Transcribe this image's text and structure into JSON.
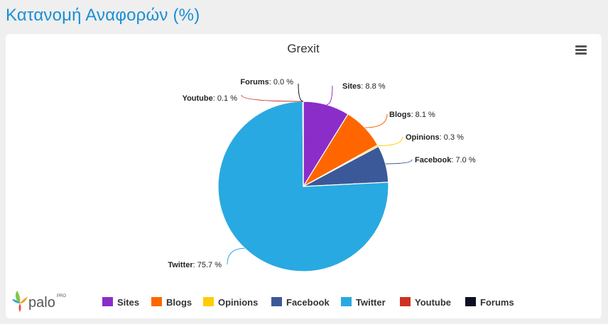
{
  "page": {
    "heading": "Κατανομή Αναφορών (%)"
  },
  "logo": {
    "text": "palo",
    "superscript": "PRO"
  },
  "icons": {
    "menu": "hamburger-menu-icon",
    "logo": "palo-leaf-logo-icon"
  },
  "chart_data": {
    "type": "pie",
    "title": "Grexit",
    "unit": "%",
    "legend_position": "bottom",
    "slices": [
      {
        "label": "Sites",
        "value": 8.8,
        "display": "8.8 %",
        "color": "#8b2dc9"
      },
      {
        "label": "Blogs",
        "value": 8.1,
        "display": "8.1 %",
        "color": "#ff6600"
      },
      {
        "label": "Opinions",
        "value": 0.3,
        "display": "0.3 %",
        "color": "#ffcc00"
      },
      {
        "label": "Facebook",
        "value": 7.0,
        "display": "7.0 %",
        "color": "#3b5998"
      },
      {
        "label": "Twitter",
        "value": 75.7,
        "display": "75.7 %",
        "color": "#29a9e1"
      },
      {
        "label": "Youtube",
        "value": 0.1,
        "display": "0.1 %",
        "color": "#d03024"
      },
      {
        "label": "Forums",
        "value": 0.0,
        "display": "0.0 %",
        "color": "#0b1026"
      }
    ]
  }
}
